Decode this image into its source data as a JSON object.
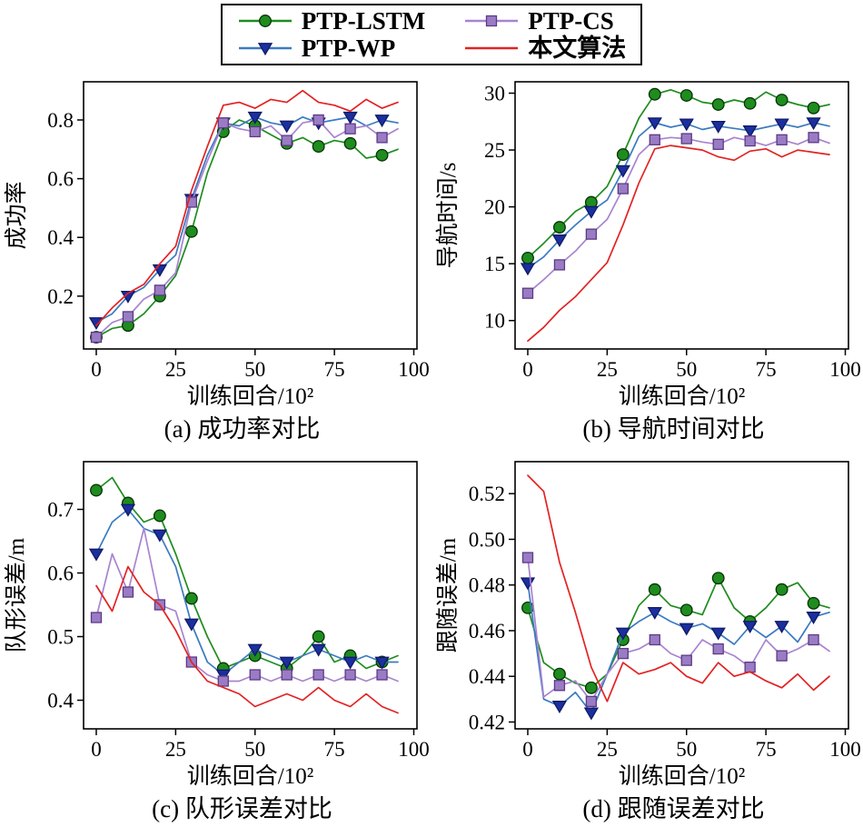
{
  "legend": {
    "items": [
      {
        "label": "PTP-LSTM",
        "color": "#1f8c1f",
        "marker": "circle",
        "marker_fill": "#1f8c1f",
        "marker_stroke": "#063306"
      },
      {
        "label": "PTP-WP",
        "color": "#3b7bbf",
        "marker": "triangle-down",
        "marker_fill": "#1b2f9e",
        "marker_stroke": "#101a66"
      },
      {
        "label": "PTP-CS",
        "color": "#a884d0",
        "marker": "square",
        "marker_fill": "#9a7cc4",
        "marker_stroke": "#5c3a85"
      },
      {
        "label": "本文算法",
        "color": "#e32222",
        "marker": "none",
        "marker_fill": "#e32222",
        "marker_stroke": "#a00f0f"
      }
    ]
  },
  "chart_data": [
    {
      "type": "line",
      "title": "(a) 成功率对比",
      "xlabel": "训练回合/10²",
      "ylabel": "成功率",
      "xlim": [
        -4,
        101
      ],
      "ylim": [
        0.02,
        0.93
      ],
      "xticks": [
        0,
        25,
        50,
        75,
        100
      ],
      "xticklabels": [
        "0",
        "25",
        "50",
        "75",
        "100"
      ],
      "yticks": [
        0.2,
        0.4,
        0.6,
        0.8
      ],
      "yticklabels": [
        "0.2",
        "0.4",
        "0.6",
        "0.8"
      ],
      "x": [
        0,
        5,
        10,
        15,
        20,
        25,
        30,
        35,
        40,
        45,
        50,
        55,
        60,
        65,
        70,
        75,
        80,
        85,
        90,
        95
      ],
      "series": [
        {
          "name": "PTP-LSTM",
          "values": [
            0.06,
            0.09,
            0.1,
            0.14,
            0.2,
            0.27,
            0.42,
            0.62,
            0.76,
            0.8,
            0.78,
            0.75,
            0.72,
            0.74,
            0.71,
            0.73,
            0.72,
            0.67,
            0.68,
            0.7
          ]
        },
        {
          "name": "PTP-WP",
          "values": [
            0.11,
            0.14,
            0.2,
            0.23,
            0.29,
            0.34,
            0.53,
            0.68,
            0.79,
            0.78,
            0.81,
            0.79,
            0.78,
            0.81,
            0.79,
            0.8,
            0.81,
            0.78,
            0.8,
            0.79
          ]
        },
        {
          "name": "PTP-CS",
          "values": [
            0.06,
            0.11,
            0.13,
            0.19,
            0.22,
            0.28,
            0.52,
            0.66,
            0.79,
            0.77,
            0.76,
            0.78,
            0.73,
            0.79,
            0.8,
            0.74,
            0.77,
            0.78,
            0.74,
            0.77
          ]
        },
        {
          "name": "本文算法",
          "values": [
            0.1,
            0.16,
            0.21,
            0.24,
            0.31,
            0.37,
            0.56,
            0.71,
            0.85,
            0.86,
            0.84,
            0.87,
            0.86,
            0.9,
            0.86,
            0.85,
            0.83,
            0.87,
            0.84,
            0.86
          ]
        }
      ]
    },
    {
      "type": "line",
      "title": "(b) 导航时间对比",
      "xlabel": "训练回合/10²",
      "ylabel": "导航时间/s",
      "xlim": [
        -4,
        101
      ],
      "ylim": [
        7.5,
        31
      ],
      "xticks": [
        0,
        25,
        50,
        75,
        100
      ],
      "xticklabels": [
        "0",
        "25",
        "50",
        "75",
        "100"
      ],
      "yticks": [
        10,
        15,
        20,
        25,
        30
      ],
      "yticklabels": [
        "10",
        "15",
        "20",
        "25",
        "30"
      ],
      "x": [
        0,
        5,
        10,
        15,
        20,
        25,
        30,
        35,
        40,
        45,
        50,
        55,
        60,
        65,
        70,
        75,
        80,
        85,
        90,
        95
      ],
      "series": [
        {
          "name": "PTP-LSTM",
          "values": [
            15.5,
            16.8,
            18.2,
            19.6,
            20.4,
            21.8,
            24.6,
            27.8,
            29.9,
            30.3,
            29.8,
            29.2,
            29.0,
            29.4,
            29.1,
            30.1,
            29.4,
            29.0,
            28.7,
            29.0
          ]
        },
        {
          "name": "PTP-WP",
          "values": [
            14.6,
            15.6,
            17.1,
            18.4,
            19.6,
            20.6,
            23.2,
            26.2,
            27.4,
            27.0,
            27.3,
            26.8,
            27.1,
            26.9,
            26.7,
            27.0,
            27.3,
            27.0,
            27.4,
            27.1
          ]
        },
        {
          "name": "PTP-CS",
          "values": [
            12.4,
            13.6,
            14.9,
            16.1,
            17.6,
            18.9,
            21.6,
            24.6,
            25.9,
            26.1,
            26.0,
            25.7,
            25.5,
            26.1,
            25.8,
            25.4,
            25.9,
            25.5,
            26.1,
            25.6
          ]
        },
        {
          "name": "本文算法",
          "values": [
            8.2,
            9.4,
            10.9,
            12.1,
            13.6,
            15.1,
            18.4,
            22.1,
            25.1,
            25.4,
            25.2,
            25.0,
            24.4,
            24.1,
            24.9,
            25.1,
            24.4,
            25.0,
            24.8,
            24.6
          ]
        }
      ]
    },
    {
      "type": "line",
      "title": "(c) 队形误差对比",
      "xlabel": "训练回合/10²",
      "ylabel": "队形误差/m",
      "xlim": [
        -4,
        101
      ],
      "ylim": [
        0.355,
        0.775
      ],
      "xticks": [
        0,
        25,
        50,
        75,
        100
      ],
      "xticklabels": [
        "0",
        "25",
        "50",
        "75",
        "100"
      ],
      "yticks": [
        0.4,
        0.5,
        0.6,
        0.7
      ],
      "yticklabels": [
        "0.4",
        "0.5",
        "0.6",
        "0.7"
      ],
      "x": [
        0,
        5,
        10,
        15,
        20,
        25,
        30,
        35,
        40,
        45,
        50,
        55,
        60,
        65,
        70,
        75,
        80,
        85,
        90,
        95
      ],
      "series": [
        {
          "name": "PTP-LSTM",
          "values": [
            0.73,
            0.75,
            0.71,
            0.68,
            0.69,
            0.63,
            0.56,
            0.5,
            0.45,
            0.46,
            0.47,
            0.46,
            0.45,
            0.47,
            0.5,
            0.46,
            0.47,
            0.45,
            0.46,
            0.47
          ]
        },
        {
          "name": "PTP-WP",
          "values": [
            0.63,
            0.68,
            0.7,
            0.67,
            0.66,
            0.61,
            0.52,
            0.46,
            0.44,
            0.46,
            0.48,
            0.47,
            0.46,
            0.47,
            0.48,
            0.47,
            0.46,
            0.47,
            0.46,
            0.46
          ]
        },
        {
          "name": "PTP-CS",
          "values": [
            0.53,
            0.63,
            0.57,
            0.67,
            0.55,
            0.54,
            0.46,
            0.44,
            0.43,
            0.43,
            0.44,
            0.43,
            0.44,
            0.43,
            0.44,
            0.43,
            0.44,
            0.43,
            0.44,
            0.43
          ]
        },
        {
          "name": "本文算法",
          "values": [
            0.58,
            0.54,
            0.61,
            0.57,
            0.55,
            0.51,
            0.46,
            0.43,
            0.42,
            0.41,
            0.39,
            0.4,
            0.41,
            0.4,
            0.42,
            0.4,
            0.39,
            0.41,
            0.39,
            0.38
          ]
        }
      ]
    },
    {
      "type": "line",
      "title": "(d) 跟随误差对比",
      "xlabel": "训练回合/10²",
      "ylabel": "跟随误差/m",
      "xlim": [
        -4,
        101
      ],
      "ylim": [
        0.417,
        0.534
      ],
      "xticks": [
        0,
        25,
        50,
        75,
        100
      ],
      "xticklabels": [
        "0",
        "25",
        "50",
        "75",
        "100"
      ],
      "yticks": [
        0.42,
        0.44,
        0.46,
        0.48,
        0.5,
        0.52
      ],
      "yticklabels": [
        "0.42",
        "0.44",
        "0.46",
        "0.48",
        "0.50",
        "0.52"
      ],
      "x": [
        0,
        5,
        10,
        15,
        20,
        25,
        30,
        35,
        40,
        45,
        50,
        55,
        60,
        65,
        70,
        75,
        80,
        85,
        90,
        95
      ],
      "series": [
        {
          "name": "PTP-LSTM",
          "values": [
            0.47,
            0.446,
            0.441,
            0.437,
            0.435,
            0.441,
            0.456,
            0.471,
            0.478,
            0.471,
            0.469,
            0.467,
            0.483,
            0.47,
            0.464,
            0.47,
            0.478,
            0.481,
            0.472,
            0.47
          ]
        },
        {
          "name": "PTP-WP",
          "values": [
            0.481,
            0.43,
            0.427,
            0.433,
            0.424,
            0.441,
            0.459,
            0.464,
            0.468,
            0.464,
            0.461,
            0.463,
            0.459,
            0.454,
            0.462,
            0.457,
            0.462,
            0.455,
            0.466,
            0.468
          ]
        },
        {
          "name": "PTP-CS",
          "values": [
            0.492,
            0.431,
            0.436,
            0.438,
            0.429,
            0.441,
            0.45,
            0.452,
            0.456,
            0.45,
            0.447,
            0.456,
            0.452,
            0.449,
            0.444,
            0.456,
            0.449,
            0.452,
            0.456,
            0.451
          ]
        },
        {
          "name": "本文算法",
          "values": [
            0.528,
            0.521,
            0.49,
            0.468,
            0.444,
            0.429,
            0.446,
            0.441,
            0.443,
            0.446,
            0.44,
            0.437,
            0.446,
            0.44,
            0.442,
            0.438,
            0.435,
            0.441,
            0.434,
            0.44
          ]
        }
      ]
    }
  ]
}
